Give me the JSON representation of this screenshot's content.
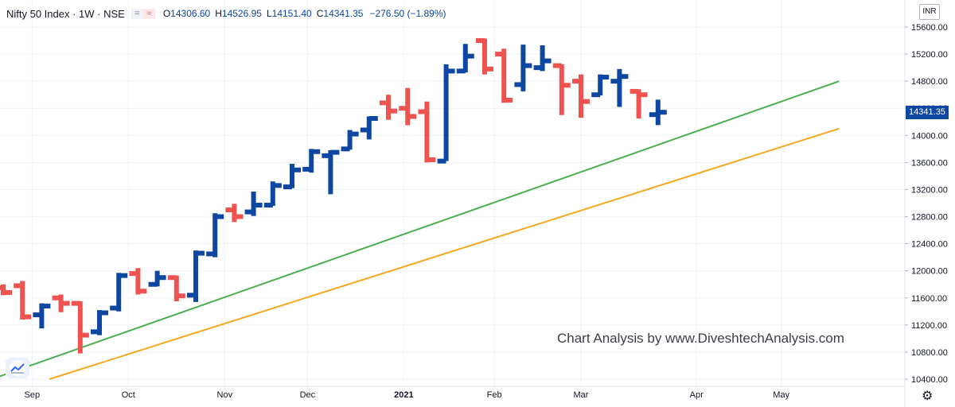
{
  "header": {
    "symbol": "Nifty 50 Index · 1W · NSE",
    "pill_left": "=",
    "pill_right": "≈",
    "open_label": "O",
    "open": "14306.60",
    "high_label": "H",
    "high": "14526.95",
    "low_label": "L",
    "low": "14151.40",
    "close_label": "C",
    "close": "14341.35",
    "change": "−276.50 (−1.89%)"
  },
  "currency": "INR",
  "last_price_label": "14341.35",
  "watermark": "Chart Analysis by www.DiveshtechAnalysis.com",
  "colors": {
    "up": "#0d47a1",
    "down": "#ef5350",
    "support_green": "#4caf50",
    "support_orange": "#f6a81f",
    "grid": "#f0f3fa"
  },
  "icons": {
    "logo": "tradingview-logo-icon",
    "settings": "gear-icon"
  },
  "chart_data": {
    "type": "ohlc",
    "interval": "1W",
    "y_axis": {
      "ylim": [
        10400,
        15700
      ],
      "ticks": [
        15600,
        15200,
        14800,
        14400,
        14000,
        13600,
        13200,
        12800,
        12400,
        12000,
        11600,
        11200,
        10800,
        10400
      ],
      "tick_labels": [
        "15600.00",
        "15200.00",
        "14800.00",
        "14400.00",
        "14000.00",
        "13600.00",
        "13200.00",
        "12800.00",
        "12400.00",
        "12000.00",
        "11600.00",
        "11200.00",
        "10800.00",
        "10400.00"
      ]
    },
    "x_axis": {
      "labels": [
        "Sep",
        "Oct",
        "Nov",
        "Dec",
        "2021",
        "Feb",
        "Mar",
        "Apr",
        "May"
      ],
      "label_bar_index": [
        1.5,
        6.5,
        11.5,
        15.8,
        20.8,
        25.5,
        30.0,
        36.0,
        40.4
      ]
    },
    "grid": true,
    "bars": [
      {
        "o": 11750,
        "h": 11800,
        "l": 11640,
        "c": 11680
      },
      {
        "o": 11780,
        "h": 11850,
        "l": 11280,
        "c": 11320
      },
      {
        "o": 11350,
        "h": 11520,
        "l": 11150,
        "c": 11480
      },
      {
        "o": 11600,
        "h": 11650,
        "l": 11390,
        "c": 11520
      },
      {
        "o": 11520,
        "h": 11550,
        "l": 10780,
        "c": 11050
      },
      {
        "o": 11100,
        "h": 11420,
        "l": 11050,
        "c": 11380
      },
      {
        "o": 11450,
        "h": 11970,
        "l": 11400,
        "c": 11930
      },
      {
        "o": 11960,
        "h": 12040,
        "l": 11650,
        "c": 11700
      },
      {
        "o": 11800,
        "h": 12000,
        "l": 11770,
        "c": 11900
      },
      {
        "o": 11900,
        "h": 11930,
        "l": 11550,
        "c": 11630
      },
      {
        "o": 11640,
        "h": 12300,
        "l": 11540,
        "c": 12260
      },
      {
        "o": 12250,
        "h": 12850,
        "l": 12200,
        "c": 12800
      },
      {
        "o": 12900,
        "h": 12990,
        "l": 12720,
        "c": 12800
      },
      {
        "o": 12870,
        "h": 13170,
        "l": 12810,
        "c": 12970
      },
      {
        "o": 12970,
        "h": 13320,
        "l": 12960,
        "c": 13260
      },
      {
        "o": 13240,
        "h": 13580,
        "l": 13220,
        "c": 13490
      },
      {
        "o": 13500,
        "h": 13800,
        "l": 13450,
        "c": 13760
      },
      {
        "o": 13700,
        "h": 13780,
        "l": 13130,
        "c": 13750
      },
      {
        "o": 13800,
        "h": 14080,
        "l": 13790,
        "c": 14020
      },
      {
        "o": 14080,
        "h": 14280,
        "l": 13940,
        "c": 14250
      },
      {
        "o": 14480,
        "h": 14600,
        "l": 14230,
        "c": 14360
      },
      {
        "o": 14400,
        "h": 14700,
        "l": 14150,
        "c": 14280
      },
      {
        "o": 14350,
        "h": 14500,
        "l": 13600,
        "c": 13640
      },
      {
        "o": 13620,
        "h": 15050,
        "l": 13620,
        "c": 14950
      },
      {
        "o": 14950,
        "h": 15350,
        "l": 14930,
        "c": 15170
      },
      {
        "o": 15400,
        "h": 15430,
        "l": 14900,
        "c": 14980
      },
      {
        "o": 15200,
        "h": 15280,
        "l": 14480,
        "c": 14520
      },
      {
        "o": 14750,
        "h": 15340,
        "l": 14650,
        "c": 15030
      },
      {
        "o": 15000,
        "h": 15330,
        "l": 14950,
        "c": 15100
      },
      {
        "o": 15030,
        "h": 15050,
        "l": 14300,
        "c": 14740
      },
      {
        "o": 14800,
        "h": 14900,
        "l": 14260,
        "c": 14500
      },
      {
        "o": 14600,
        "h": 14900,
        "l": 14590,
        "c": 14860
      },
      {
        "o": 14800,
        "h": 14980,
        "l": 14420,
        "c": 14870
      },
      {
        "o": 14650,
        "h": 14680,
        "l": 14250,
        "c": 14600
      },
      {
        "o": 14306.6,
        "h": 14526.95,
        "l": 14151.4,
        "c": 14341.35
      }
    ],
    "trendlines": [
      {
        "name": "",
        "color": "#4caf50",
        "p1": {
          "bar": -0.6,
          "price": 10400
        },
        "p2": {
          "bar": 43.4,
          "price": 14800
        }
      },
      {
        "name": "",
        "color": "#f6a81f",
        "p1": {
          "bar": 2.4,
          "price": 10400
        },
        "p2": {
          "bar": 43.4,
          "price": 14100
        }
      }
    ]
  }
}
